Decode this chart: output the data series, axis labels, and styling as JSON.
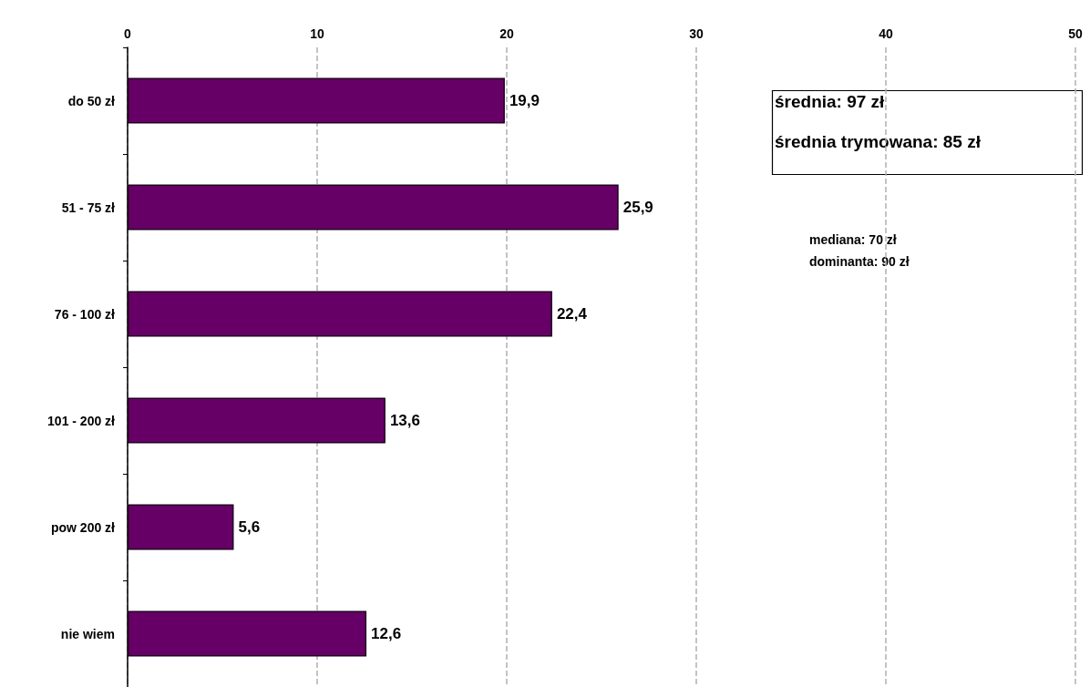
{
  "chart_data": {
    "type": "bar",
    "orientation": "horizontal",
    "categories": [
      "do 50 zł",
      "51 - 75 zł",
      "76 - 100 zł",
      "101 - 200 zł",
      "pow 200 zł",
      "nie wiem"
    ],
    "values": [
      19.9,
      25.9,
      22.4,
      13.6,
      5.6,
      12.6
    ],
    "value_labels": [
      "19,9",
      "25,9",
      "22,4",
      "13,6",
      "5,6",
      "12,6"
    ],
    "color": "#660066",
    "xlim": [
      0,
      50
    ],
    "xticks": [
      0,
      10,
      20,
      30,
      40,
      50
    ],
    "grid": "x",
    "annotations": [
      "średnia: 97 zł",
      "średnia trymowana: 85 zł",
      "mediana: 70 zł",
      "dominanta: 90 zł"
    ]
  }
}
